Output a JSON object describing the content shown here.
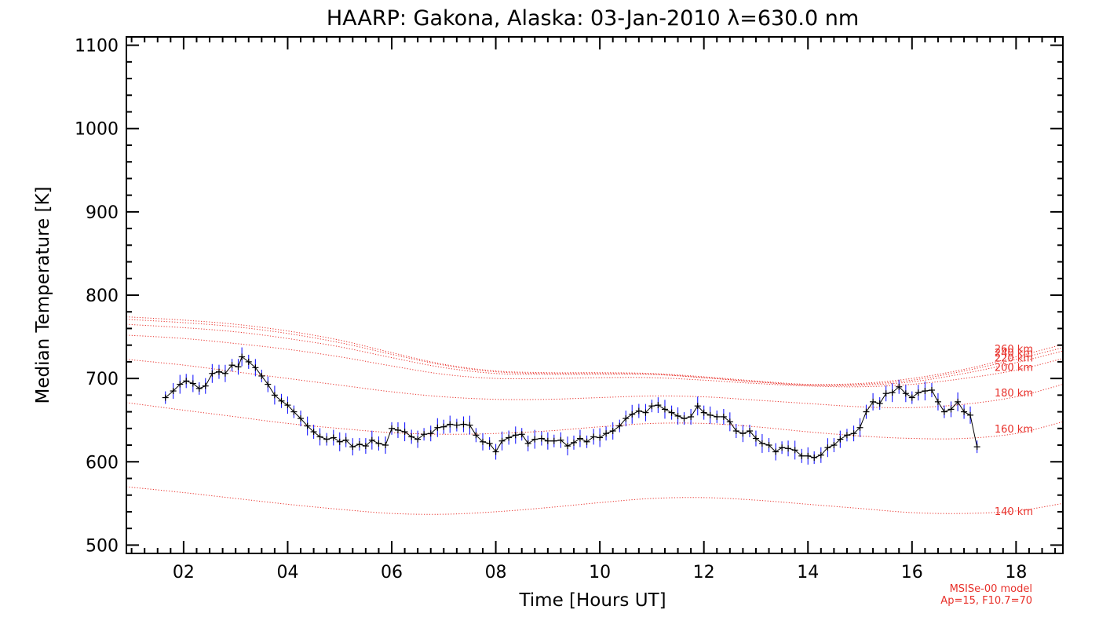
{
  "chart_data": {
    "type": "line",
    "title": "HAARP: Gakona,  Alaska: 03-Jan-2010 λ=630.0 nm",
    "xlabel": "Time [Hours UT]",
    "ylabel": "Median Temperature [K]",
    "xlim": [
      0.9,
      18.9
    ],
    "ylim": [
      490,
      1110
    ],
    "x_ticks": [
      "02",
      "04",
      "06",
      "08",
      "10",
      "12",
      "14",
      "16",
      "18"
    ],
    "y_ticks": [
      "500",
      "600",
      "700",
      "800",
      "900",
      "1000",
      "1100"
    ],
    "grid": false,
    "measured": {
      "color": "#000000",
      "error_bar_color": "#1a1aff",
      "points": [
        [
          1.65,
          677
        ],
        [
          1.8,
          685
        ],
        [
          1.93,
          693
        ],
        [
          2.05,
          697
        ],
        [
          2.18,
          694
        ],
        [
          2.3,
          688
        ],
        [
          2.42,
          691
        ],
        [
          2.55,
          706
        ],
        [
          2.68,
          708
        ],
        [
          2.8,
          706
        ],
        [
          2.93,
          716
        ],
        [
          3.05,
          714
        ],
        [
          3.12,
          726
        ],
        [
          3.25,
          720
        ],
        [
          3.38,
          713
        ],
        [
          3.5,
          703
        ],
        [
          3.62,
          693
        ],
        [
          3.75,
          680
        ],
        [
          3.88,
          673
        ],
        [
          4.0,
          668
        ],
        [
          4.12,
          660
        ],
        [
          4.25,
          652
        ],
        [
          4.38,
          643
        ],
        [
          4.5,
          636
        ],
        [
          4.62,
          630
        ],
        [
          4.75,
          627
        ],
        [
          4.88,
          629
        ],
        [
          5.0,
          624
        ],
        [
          5.12,
          626
        ],
        [
          5.25,
          618
        ],
        [
          5.38,
          621
        ],
        [
          5.5,
          619
        ],
        [
          5.62,
          626
        ],
        [
          5.75,
          622
        ],
        [
          5.88,
          620
        ],
        [
          6.0,
          640
        ],
        [
          6.12,
          638
        ],
        [
          6.25,
          636
        ],
        [
          6.38,
          630
        ],
        [
          6.5,
          627
        ],
        [
          6.62,
          633
        ],
        [
          6.75,
          634
        ],
        [
          6.88,
          641
        ],
        [
          7.0,
          642
        ],
        [
          7.12,
          645
        ],
        [
          7.25,
          644
        ],
        [
          7.38,
          645
        ],
        [
          7.5,
          644
        ],
        [
          7.62,
          632
        ],
        [
          7.75,
          624
        ],
        [
          7.88,
          622
        ],
        [
          8.0,
          612
        ],
        [
          8.12,
          625
        ],
        [
          8.25,
          629
        ],
        [
          8.38,
          632
        ],
        [
          8.5,
          633
        ],
        [
          8.62,
          622
        ],
        [
          8.75,
          627
        ],
        [
          8.88,
          628
        ],
        [
          9.0,
          625
        ],
        [
          9.12,
          625
        ],
        [
          9.25,
          626
        ],
        [
          9.38,
          619
        ],
        [
          9.5,
          623
        ],
        [
          9.62,
          628
        ],
        [
          9.75,
          624
        ],
        [
          9.88,
          630
        ],
        [
          10.0,
          629
        ],
        [
          10.12,
          634
        ],
        [
          10.25,
          637
        ],
        [
          10.38,
          643
        ],
        [
          10.5,
          652
        ],
        [
          10.62,
          657
        ],
        [
          10.75,
          661
        ],
        [
          10.88,
          659
        ],
        [
          11.0,
          667
        ],
        [
          11.12,
          668
        ],
        [
          11.25,
          663
        ],
        [
          11.38,
          659
        ],
        [
          11.5,
          655
        ],
        [
          11.62,
          652
        ],
        [
          11.75,
          654
        ],
        [
          11.88,
          667
        ],
        [
          12.0,
          659
        ],
        [
          12.12,
          656
        ],
        [
          12.25,
          654
        ],
        [
          12.38,
          654
        ],
        [
          12.5,
          648
        ],
        [
          12.62,
          637
        ],
        [
          12.75,
          634
        ],
        [
          12.88,
          637
        ],
        [
          13.0,
          628
        ],
        [
          13.12,
          622
        ],
        [
          13.25,
          620
        ],
        [
          13.38,
          612
        ],
        [
          13.5,
          617
        ],
        [
          13.62,
          616
        ],
        [
          13.75,
          614
        ],
        [
          13.88,
          607
        ],
        [
          14.0,
          607
        ],
        [
          14.12,
          605
        ],
        [
          14.25,
          608
        ],
        [
          14.38,
          617
        ],
        [
          14.5,
          620
        ],
        [
          14.62,
          627
        ],
        [
          14.75,
          632
        ],
        [
          14.88,
          634
        ],
        [
          15.0,
          641
        ],
        [
          15.12,
          660
        ],
        [
          15.25,
          672
        ],
        [
          15.38,
          670
        ],
        [
          15.5,
          682
        ],
        [
          15.62,
          683
        ],
        [
          15.75,
          690
        ],
        [
          15.88,
          682
        ],
        [
          16.0,
          677
        ],
        [
          16.12,
          683
        ],
        [
          16.25,
          685
        ],
        [
          16.38,
          686
        ],
        [
          16.5,
          672
        ],
        [
          16.62,
          660
        ],
        [
          16.75,
          663
        ],
        [
          16.88,
          672
        ],
        [
          17.0,
          660
        ],
        [
          17.12,
          656
        ],
        [
          17.25,
          618
        ]
      ]
    },
    "model_curves": {
      "name": "MSISe-00 model",
      "color": "#e8302a",
      "x": [
        0.9,
        2,
        3,
        4,
        5,
        6,
        7,
        8,
        9,
        10,
        11,
        12,
        13,
        14,
        15,
        16,
        17,
        18,
        18.9
      ],
      "series": [
        {
          "name": "140 km",
          "values": [
            570,
            563,
            556,
            549,
            543,
            538,
            537,
            540,
            545,
            551,
            556,
            557,
            554,
            549,
            544,
            539,
            538,
            541,
            550
          ]
        },
        {
          "name": "160 km",
          "values": [
            671,
            662,
            654,
            646,
            640,
            635,
            633,
            634,
            637,
            642,
            646,
            646,
            642,
            636,
            631,
            628,
            628,
            634,
            648
          ]
        },
        {
          "name": "180 km",
          "values": [
            723,
            716,
            708,
            700,
            692,
            684,
            678,
            675,
            675,
            677,
            679,
            678,
            674,
            670,
            666,
            665,
            669,
            678,
            693
          ]
        },
        {
          "name": "200 km",
          "values": [
            752,
            748,
            742,
            735,
            726,
            715,
            705,
            700,
            700,
            701,
            701,
            698,
            694,
            691,
            690,
            693,
            700,
            710,
            724
          ]
        },
        {
          "name": "220 km",
          "values": [
            765,
            761,
            756,
            748,
            738,
            725,
            713,
            706,
            705,
            705,
            705,
            701,
            696,
            692,
            692,
            696,
            706,
            719,
            733
          ]
        },
        {
          "name": "240 km",
          "values": [
            771,
            767,
            762,
            754,
            743,
            729,
            716,
            708,
            706,
            706,
            705,
            701,
            696,
            692,
            693,
            698,
            709,
            723,
            737
          ]
        },
        {
          "name": "260 km",
          "values": [
            774,
            770,
            765,
            757,
            746,
            731,
            717,
            709,
            707,
            707,
            706,
            702,
            697,
            693,
            694,
            700,
            711,
            726,
            741
          ]
        }
      ],
      "label_values": [
        541,
        640,
        683,
        714,
        725,
        731,
        736
      ],
      "labels": [
        "140 km",
        "160 km",
        "180 km",
        "200 km",
        "220 km",
        "240 km",
        "260 km"
      ]
    },
    "model_note": [
      "MSISe-00 model",
      "Ap=15, F10.7=70"
    ]
  }
}
